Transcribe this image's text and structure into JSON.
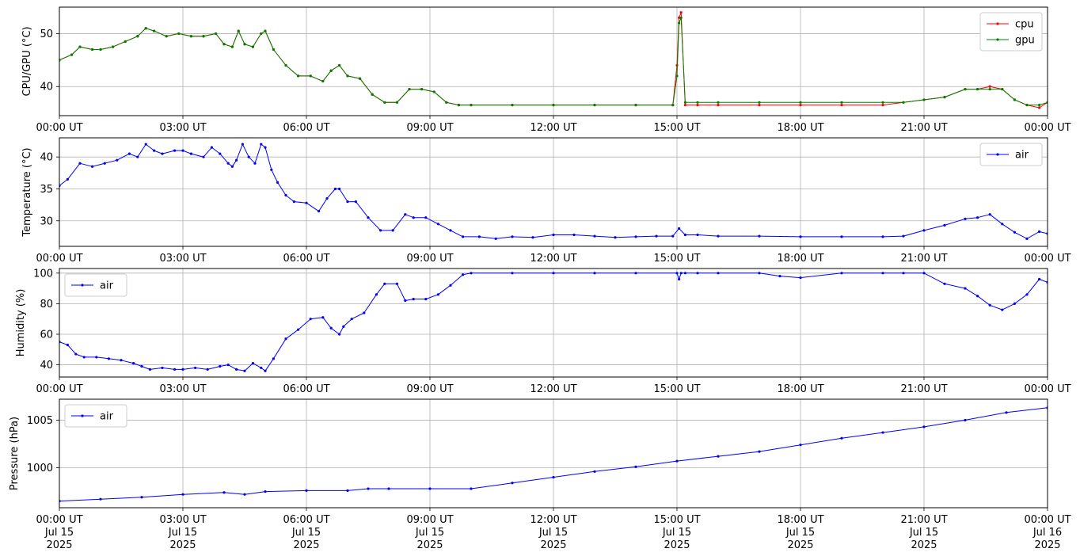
{
  "x_tick_labels": [
    "00:00 UT",
    "03:00 UT",
    "06:00 UT",
    "09:00 UT",
    "12:00 UT",
    "15:00 UT",
    "18:00 UT",
    "21:00 UT",
    "00:00 UT"
  ],
  "x_tick_dates": [
    [
      "Jul 15",
      "2025"
    ],
    [
      "Jul 15",
      "2025"
    ],
    [
      "Jul 15",
      "2025"
    ],
    [
      "Jul 15",
      "2025"
    ],
    [
      "Jul 15",
      "2025"
    ],
    [
      "Jul 15",
      "2025"
    ],
    [
      "Jul 15",
      "2025"
    ],
    [
      "Jul 15",
      "2025"
    ],
    [
      "Jul 16",
      "2025"
    ]
  ],
  "chart_data": [
    {
      "type": "line",
      "ylabel": "CPU/GPU (°C)",
      "xlabel": "",
      "x_unit": "hours since 00:00 UT Jul 15 2025",
      "xlim": [
        0,
        24
      ],
      "ylim": [
        34.5,
        55
      ],
      "yticks": [
        40,
        50
      ],
      "grid": true,
      "legend": "top-right",
      "series": [
        {
          "name": "cpu",
          "color": "#ff0000",
          "x": [
            0,
            0.3,
            0.5,
            0.8,
            1.0,
            1.3,
            1.6,
            1.9,
            2.1,
            2.3,
            2.6,
            2.9,
            3.2,
            3.5,
            3.8,
            4.0,
            4.2,
            4.35,
            4.5,
            4.7,
            4.9,
            5.0,
            5.2,
            5.5,
            5.8,
            6.1,
            6.4,
            6.6,
            6.8,
            7.0,
            7.3,
            7.6,
            7.9,
            8.2,
            8.5,
            8.8,
            9.1,
            9.4,
            9.7,
            10.0,
            11,
            12,
            13,
            14,
            14.9,
            15.0,
            15.05,
            15.1,
            15.2,
            15.5,
            16,
            17,
            18,
            19,
            20,
            20.5,
            21,
            21.5,
            22,
            22.3,
            22.6,
            22.9,
            23.2,
            23.5,
            23.8,
            24
          ],
          "values": [
            45,
            46,
            47.5,
            47,
            47,
            47.5,
            48.5,
            49.5,
            51,
            50.5,
            49.5,
            50,
            49.5,
            49.5,
            50,
            48,
            47.5,
            50.5,
            48,
            47.5,
            50,
            50.5,
            47,
            44,
            42,
            42,
            41,
            43,
            44,
            42,
            41.5,
            38.5,
            37,
            37,
            39.5,
            39.5,
            39,
            37,
            36.5,
            36.5,
            36.5,
            36.5,
            36.5,
            36.5,
            36.5,
            44,
            53,
            54,
            36.5,
            36.5,
            36.5,
            36.5,
            36.5,
            36.5,
            36.5,
            37,
            37.5,
            38,
            39.5,
            39.5,
            40,
            39.5,
            37.5,
            36.5,
            36,
            37
          ]
        },
        {
          "name": "gpu",
          "color": "#008000",
          "x": [
            0,
            0.3,
            0.5,
            0.8,
            1.0,
            1.3,
            1.6,
            1.9,
            2.1,
            2.3,
            2.6,
            2.9,
            3.2,
            3.5,
            3.8,
            4.0,
            4.2,
            4.35,
            4.5,
            4.7,
            4.9,
            5.0,
            5.2,
            5.5,
            5.8,
            6.1,
            6.4,
            6.6,
            6.8,
            7.0,
            7.3,
            7.6,
            7.9,
            8.2,
            8.5,
            8.8,
            9.1,
            9.4,
            9.7,
            10.0,
            11,
            12,
            13,
            14,
            14.9,
            15.0,
            15.05,
            15.1,
            15.2,
            15.5,
            16,
            17,
            18,
            19,
            20,
            20.5,
            21,
            21.5,
            22,
            22.3,
            22.6,
            22.9,
            23.2,
            23.5,
            23.8,
            24
          ],
          "values": [
            45,
            46,
            47.5,
            47,
            47,
            47.5,
            48.5,
            49.5,
            51,
            50.5,
            49.5,
            50,
            49.5,
            49.5,
            50,
            48,
            47.5,
            50.5,
            48,
            47.5,
            50,
            50.5,
            47,
            44,
            42,
            42,
            41,
            43,
            44,
            42,
            41.5,
            38.5,
            37,
            37,
            39.5,
            39.5,
            39,
            37,
            36.5,
            36.5,
            36.5,
            36.5,
            36.5,
            36.5,
            36.5,
            42,
            52,
            53,
            37,
            37,
            37,
            37,
            37,
            37,
            37,
            37,
            37.5,
            38,
            39.5,
            39.5,
            39.5,
            39.5,
            37.5,
            36.5,
            36.5,
            37
          ]
        }
      ]
    },
    {
      "type": "line",
      "ylabel": "Temperature (°C)",
      "xlabel": "",
      "xlim": [
        0,
        24
      ],
      "ylim": [
        26,
        43
      ],
      "yticks": [
        30,
        35,
        40
      ],
      "grid": true,
      "legend": "top-right",
      "series": [
        {
          "name": "air",
          "color": "#0000ff",
          "x": [
            0,
            0.2,
            0.5,
            0.8,
            1.1,
            1.4,
            1.7,
            1.9,
            2.1,
            2.3,
            2.5,
            2.8,
            3.0,
            3.2,
            3.5,
            3.7,
            3.9,
            4.1,
            4.2,
            4.3,
            4.45,
            4.6,
            4.75,
            4.9,
            5.0,
            5.15,
            5.3,
            5.5,
            5.7,
            6.0,
            6.3,
            6.5,
            6.7,
            6.8,
            7.0,
            7.2,
            7.5,
            7.8,
            8.1,
            8.4,
            8.6,
            8.9,
            9.2,
            9.5,
            9.8,
            10.2,
            10.6,
            11,
            11.5,
            12,
            12.5,
            13,
            13.5,
            14,
            14.5,
            14.9,
            15.05,
            15.2,
            15.5,
            16,
            17,
            18,
            19,
            20,
            20.5,
            21,
            21.5,
            22,
            22.3,
            22.6,
            22.9,
            23.2,
            23.5,
            23.8,
            24
          ],
          "values": [
            35.5,
            36.5,
            39,
            38.5,
            39,
            39.5,
            40.5,
            40,
            42,
            41,
            40.5,
            41,
            41,
            40.5,
            40,
            41.5,
            40.5,
            39,
            38.5,
            39.5,
            42,
            40,
            39,
            42,
            41.5,
            38,
            36,
            34,
            33,
            32.8,
            31.5,
            33.5,
            35,
            35,
            33,
            33,
            30.5,
            28.5,
            28.5,
            31,
            30.5,
            30.5,
            29.5,
            28.5,
            27.5,
            27.5,
            27.2,
            27.5,
            27.4,
            27.8,
            27.8,
            27.6,
            27.4,
            27.5,
            27.6,
            27.6,
            28.8,
            27.8,
            27.8,
            27.6,
            27.6,
            27.5,
            27.5,
            27.5,
            27.6,
            28.5,
            29.3,
            30.3,
            30.5,
            31,
            29.5,
            28.2,
            27.2,
            28.3,
            28
          ]
        }
      ]
    },
    {
      "type": "line",
      "ylabel": "Humidity (%)",
      "xlabel": "",
      "xlim": [
        0,
        24
      ],
      "ylim": [
        32,
        103
      ],
      "yticks": [
        40,
        60,
        80,
        100
      ],
      "grid": true,
      "legend": "top-left",
      "series": [
        {
          "name": "air",
          "color": "#0000ff",
          "x": [
            0,
            0.2,
            0.4,
            0.6,
            0.9,
            1.2,
            1.5,
            1.8,
            2.0,
            2.2,
            2.5,
            2.8,
            3.0,
            3.3,
            3.6,
            3.9,
            4.1,
            4.3,
            4.5,
            4.7,
            4.9,
            5.0,
            5.2,
            5.5,
            5.8,
            6.1,
            6.4,
            6.6,
            6.8,
            6.9,
            7.1,
            7.4,
            7.7,
            7.9,
            8.2,
            8.4,
            8.6,
            8.9,
            9.2,
            9.5,
            9.8,
            10,
            11,
            12,
            13,
            14,
            15,
            15.05,
            15.1,
            15.2,
            15.5,
            16,
            17,
            17.5,
            18,
            19,
            20,
            20.5,
            21,
            21.5,
            22,
            22.3,
            22.6,
            22.9,
            23.2,
            23.5,
            23.8,
            24
          ],
          "values": [
            55,
            53,
            47,
            45,
            45,
            44,
            43,
            41,
            39,
            37,
            38,
            37,
            37,
            38,
            37,
            39,
            40,
            37,
            36,
            41,
            38,
            36,
            44,
            57,
            63,
            70,
            71,
            64,
            60,
            65,
            70,
            74,
            86,
            93,
            93,
            82,
            83,
            83,
            86,
            92,
            99,
            100,
            100,
            100,
            100,
            100,
            100,
            96,
            100,
            100,
            100,
            100,
            100,
            98,
            97,
            100,
            100,
            100,
            100,
            93,
            90,
            85,
            79,
            76,
            80,
            86,
            96,
            94
          ]
        }
      ]
    },
    {
      "type": "line",
      "ylabel": "Pressure (hPa)",
      "xlabel": "",
      "xlim": [
        0,
        24
      ],
      "ylim": [
        995.8,
        1007.2
      ],
      "yticks": [
        1000,
        1005
      ],
      "grid": true,
      "legend": "top-left",
      "series": [
        {
          "name": "air",
          "color": "#0000ff",
          "x": [
            0,
            1,
            2,
            3,
            4,
            4.5,
            5,
            6,
            7,
            7.5,
            8,
            9,
            10,
            11,
            12,
            13,
            14,
            15,
            16,
            17,
            18,
            19,
            20,
            21,
            22,
            23,
            24
          ],
          "values": [
            996.5,
            996.7,
            996.9,
            997.2,
            997.4,
            997.2,
            997.5,
            997.6,
            997.6,
            997.8,
            997.8,
            997.8,
            997.8,
            998.4,
            999.0,
            999.6,
            1000.1,
            1000.7,
            1001.2,
            1001.7,
            1002.4,
            1003.1,
            1003.7,
            1004.3,
            1005.0,
            1005.8,
            1006.3
          ]
        }
      ]
    }
  ]
}
